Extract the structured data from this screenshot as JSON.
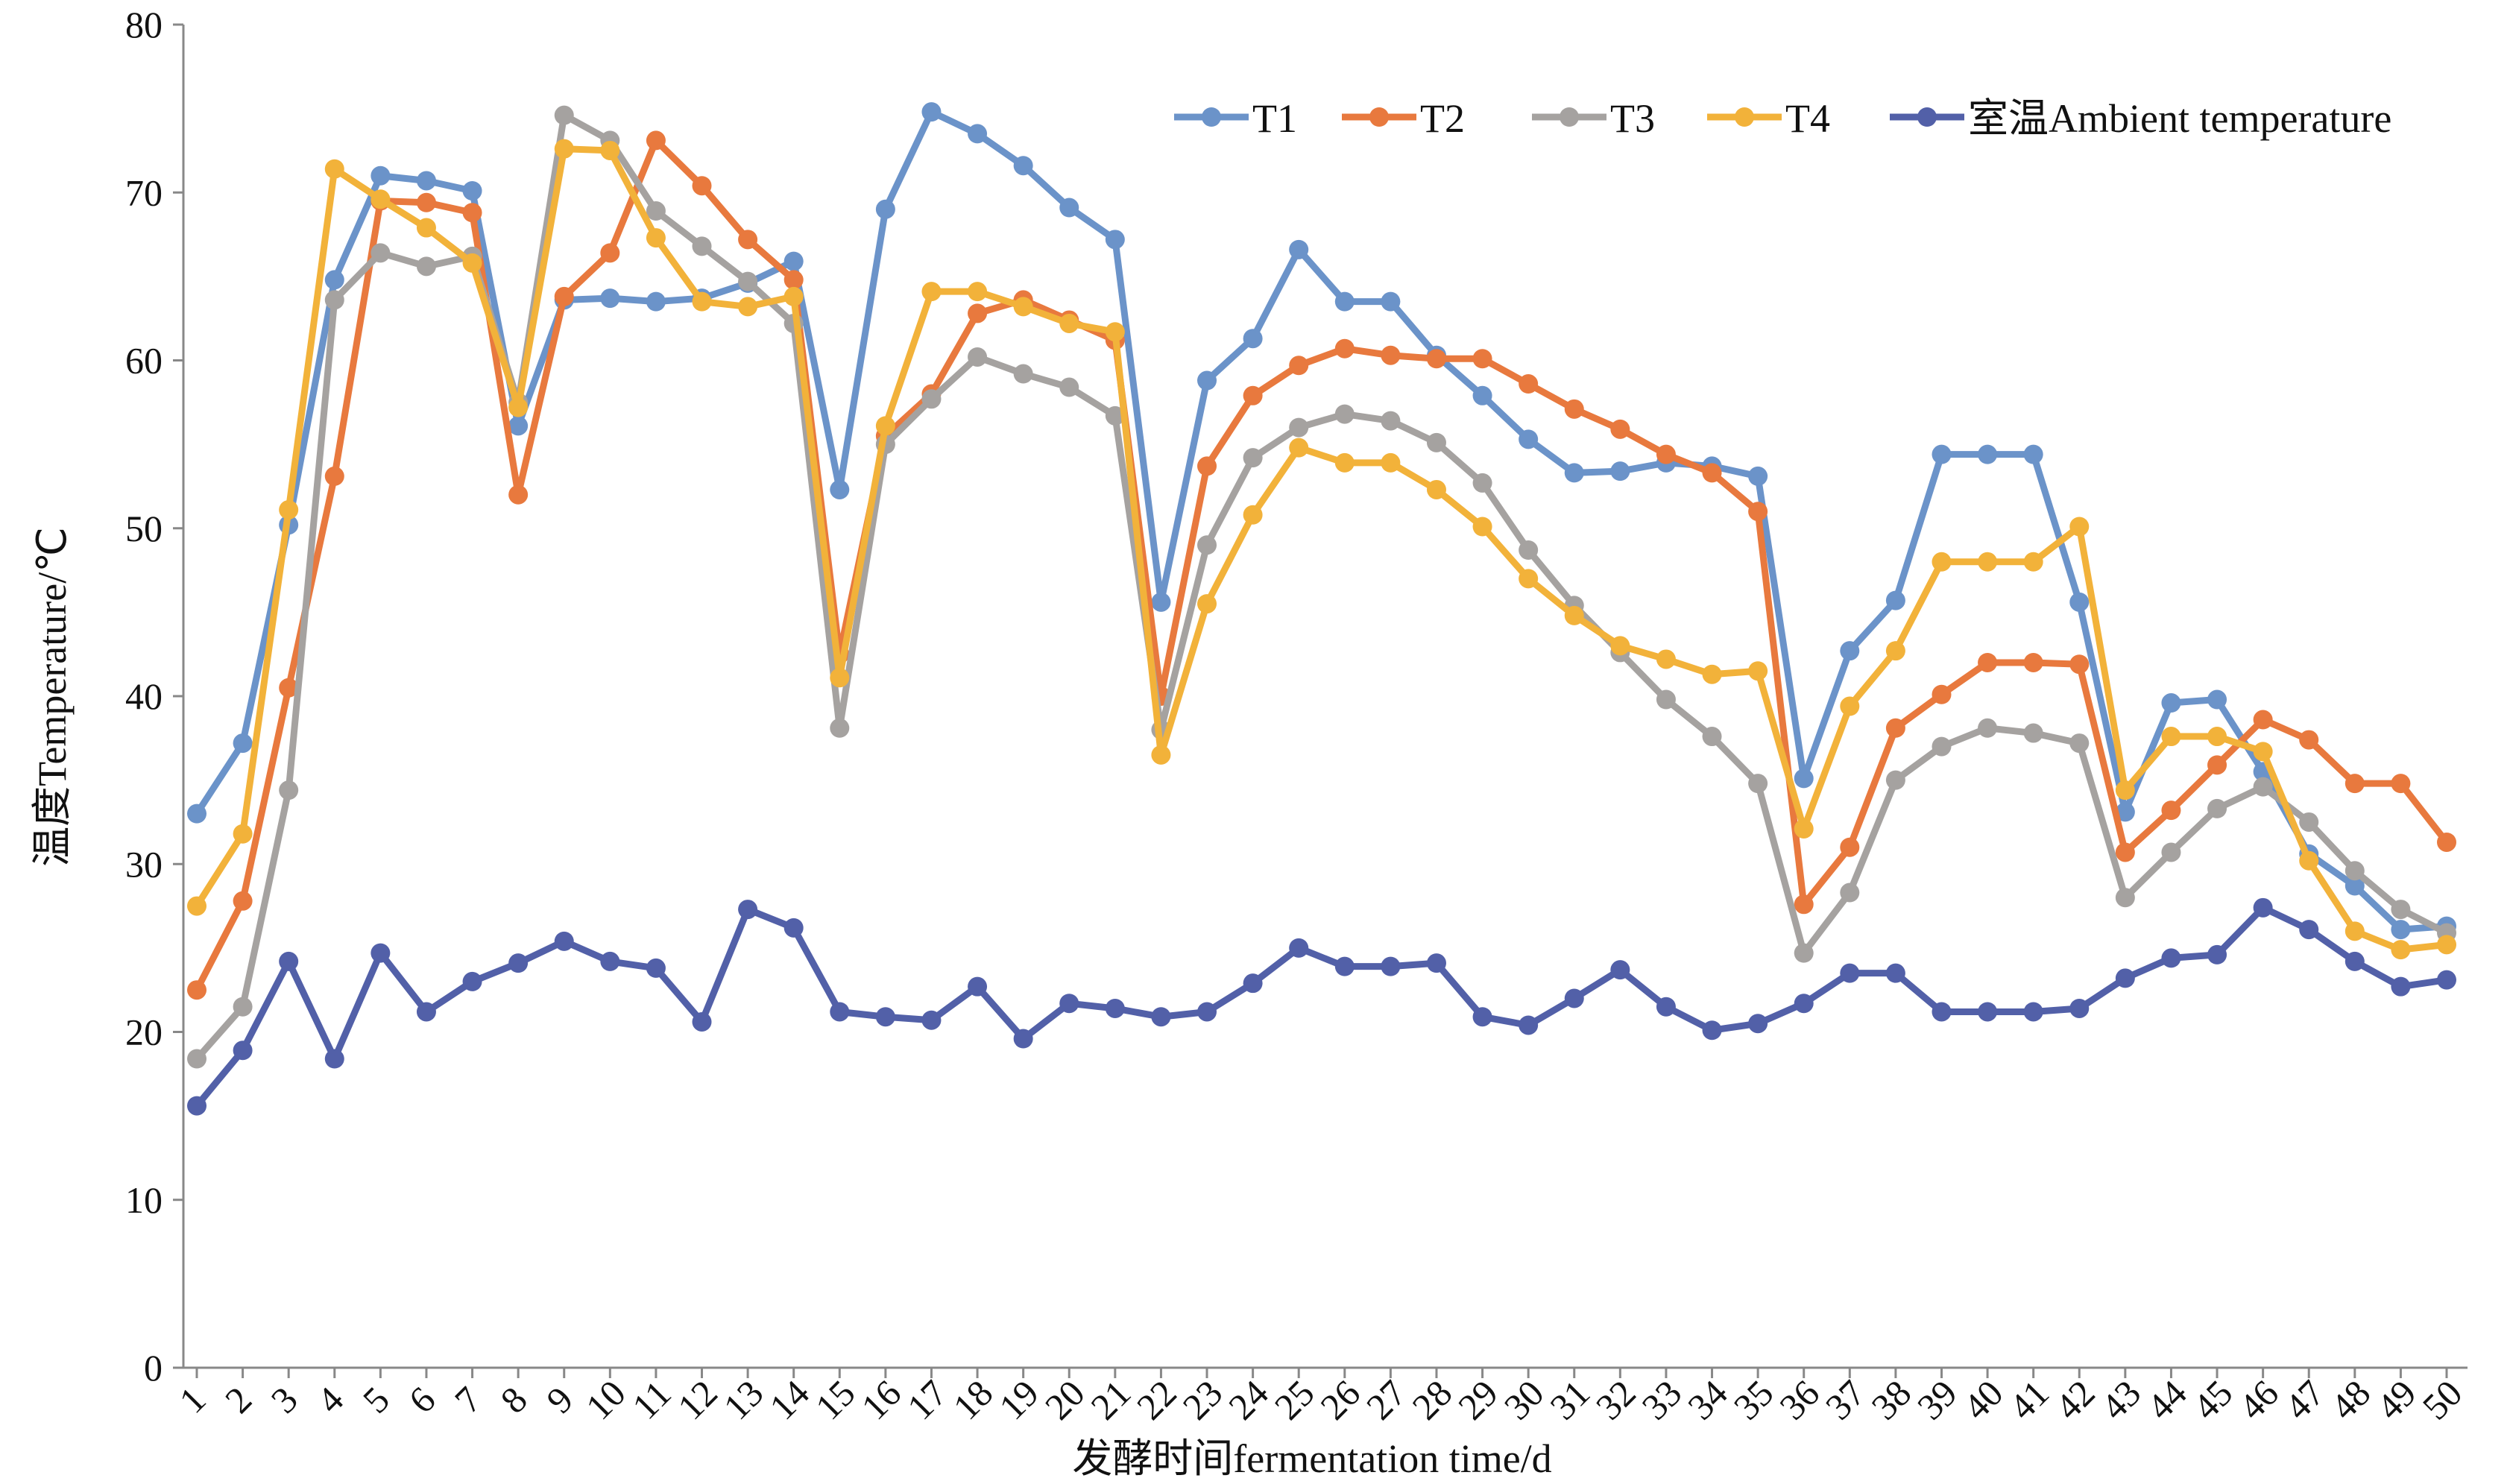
{
  "chart_data": {
    "type": "line",
    "title": "",
    "xlabel": "发酵时间fermentation time/d",
    "ylabel": "温度Temperature/℃",
    "ylim": [
      0,
      80
    ],
    "yticks": [
      0,
      10,
      20,
      30,
      40,
      50,
      60,
      70,
      80
    ],
    "grid": false,
    "legend_position": "top-right",
    "x": [
      1,
      2,
      3,
      4,
      5,
      6,
      7,
      8,
      9,
      10,
      11,
      12,
      13,
      14,
      15,
      16,
      17,
      18,
      19,
      20,
      21,
      22,
      23,
      24,
      25,
      26,
      27,
      28,
      29,
      30,
      31,
      32,
      33,
      34,
      35,
      36,
      37,
      38,
      39,
      40,
      41,
      42,
      43,
      44,
      45,
      46,
      47,
      48,
      49,
      50
    ],
    "series": [
      {
        "name": "T1",
        "color": "#6B93C9",
        "values": [
          33.0,
          37.2,
          50.2,
          64.8,
          71.0,
          70.7,
          70.1,
          56.1,
          63.6,
          63.7,
          63.5,
          63.7,
          64.6,
          65.9,
          52.3,
          69.0,
          74.8,
          73.5,
          71.6,
          69.1,
          67.2,
          45.6,
          58.8,
          61.3,
          66.6,
          63.5,
          63.5,
          60.3,
          57.9,
          55.3,
          53.3,
          53.4,
          53.9,
          53.7,
          53.1,
          35.1,
          42.7,
          45.7,
          54.4,
          54.4,
          54.4,
          45.6,
          33.1,
          39.6,
          39.8,
          35.5,
          30.6,
          28.7,
          26.1,
          26.3
        ]
      },
      {
        "name": "T2",
        "color": "#E8793E",
        "values": [
          22.5,
          27.8,
          40.5,
          53.1,
          69.5,
          69.4,
          68.8,
          52.0,
          63.8,
          66.4,
          73.1,
          70.4,
          67.2,
          64.8,
          42.5,
          55.5,
          58.0,
          62.8,
          63.6,
          62.4,
          61.2,
          40.0,
          53.7,
          57.9,
          59.7,
          60.7,
          60.3,
          60.1,
          60.1,
          58.6,
          57.1,
          55.9,
          54.4,
          53.3,
          51.0,
          27.6,
          31.0,
          38.1,
          40.1,
          42.0,
          42.0,
          41.9,
          30.7,
          33.2,
          35.9,
          38.6,
          37.4,
          34.8,
          34.8,
          31.3
        ]
      },
      {
        "name": "T3",
        "color": "#A5A2A0",
        "values": [
          18.4,
          21.5,
          34.4,
          63.6,
          66.4,
          65.6,
          66.2,
          57.5,
          74.6,
          73.1,
          68.9,
          66.8,
          64.7,
          62.2,
          38.1,
          55.0,
          57.7,
          60.2,
          59.2,
          58.4,
          56.7,
          38.0,
          49.0,
          54.2,
          56.0,
          56.8,
          56.4,
          55.1,
          52.7,
          48.7,
          45.4,
          42.6,
          39.8,
          37.6,
          34.8,
          24.7,
          28.3,
          35.0,
          37.0,
          38.1,
          37.8,
          37.2,
          28.0,
          30.7,
          33.3,
          34.6,
          32.5,
          29.6,
          27.3,
          25.9
        ]
      },
      {
        "name": "T4",
        "color": "#F2B23A",
        "values": [
          27.5,
          31.8,
          51.1,
          71.4,
          69.6,
          67.9,
          65.8,
          57.2,
          72.6,
          72.5,
          67.3,
          63.5,
          63.2,
          63.8,
          41.1,
          56.1,
          64.1,
          64.1,
          63.2,
          62.2,
          61.7,
          36.5,
          45.5,
          50.8,
          54.8,
          53.9,
          53.9,
          52.3,
          50.1,
          47.0,
          44.8,
          43.0,
          42.2,
          41.3,
          41.5,
          32.1,
          39.4,
          42.7,
          48.0,
          48.0,
          48.0,
          50.1,
          34.4,
          37.6,
          37.6,
          36.7,
          30.2,
          26.0,
          24.9,
          25.2
        ]
      },
      {
        "name": "室温Ambient temperature",
        "color": "#5260A8",
        "values": [
          15.6,
          18.9,
          24.2,
          18.4,
          24.7,
          21.2,
          23.0,
          24.1,
          25.4,
          24.2,
          23.8,
          20.6,
          27.3,
          26.2,
          21.2,
          20.9,
          20.7,
          22.7,
          19.6,
          21.7,
          21.4,
          20.9,
          21.2,
          22.9,
          25.0,
          23.9,
          23.9,
          24.1,
          20.9,
          20.4,
          22.0,
          23.7,
          21.5,
          20.1,
          20.5,
          21.7,
          23.5,
          23.5,
          21.2,
          21.2,
          21.2,
          21.4,
          23.2,
          24.4,
          24.6,
          27.4,
          26.1,
          24.2,
          22.7,
          23.1
        ]
      }
    ]
  }
}
